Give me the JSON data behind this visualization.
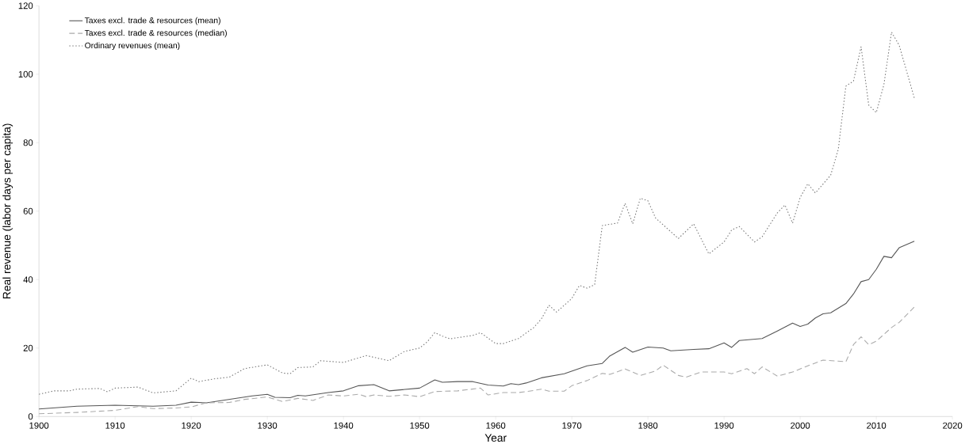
{
  "chart_data": {
    "type": "line",
    "xlabel": "Year",
    "ylabel": "Real revenue (labor days per capita)",
    "xlim": [
      1900,
      2020
    ],
    "xticks": [
      1900,
      1910,
      1920,
      1930,
      1940,
      1950,
      1960,
      1970,
      1980,
      1990,
      2000,
      2010,
      2020
    ],
    "ylim": [
      0,
      120
    ],
    "yticks": [
      0,
      20,
      40,
      60,
      80,
      100,
      120
    ],
    "grid": false,
    "legend": "top left",
    "marker": "none",
    "series": [
      {
        "name": "Taxes  excl. trade & resources (mean)",
        "color": "#555555",
        "line_style": "solid",
        "x": [
          1900,
          1905,
          1910,
          1915,
          1918,
          1920,
          1922,
          1925,
          1928,
          1930,
          1931,
          1933,
          1934,
          1935,
          1938,
          1940,
          1942,
          1944,
          1946,
          1950,
          1952,
          1953,
          1955,
          1957,
          1959,
          1961,
          1962,
          1963,
          1964,
          1966,
          1969,
          1972,
          1974,
          1975,
          1977,
          1978,
          1980,
          1982,
          1983,
          1986,
          1988,
          1990,
          1991,
          1992,
          1995,
          1997,
          1999,
          2000,
          2001,
          2002,
          2003,
          2004,
          2006,
          2007,
          2008,
          2009,
          2010,
          2011,
          2012,
          2013,
          2015
        ],
        "values": [
          2.2,
          3.0,
          3.3,
          3.0,
          3.3,
          4.2,
          4.0,
          5.0,
          6.0,
          6.5,
          5.6,
          5.5,
          6.2,
          6.0,
          7.0,
          7.5,
          9.0,
          9.3,
          7.5,
          8.3,
          10.7,
          10.0,
          10.2,
          10.2,
          9.2,
          8.9,
          9.6,
          9.3,
          9.8,
          11.3,
          12.5,
          14.8,
          15.5,
          17.7,
          20.2,
          18.8,
          20.3,
          20.0,
          19.2,
          19.6,
          19.8,
          21.5,
          20.2,
          22.2,
          22.8,
          25.0,
          27.3,
          26.3,
          27.0,
          28.8,
          30.0,
          30.3,
          33.0,
          35.8,
          39.4,
          40.0,
          43.0,
          46.8,
          46.4,
          49.3,
          51.2
        ]
      },
      {
        "name": "Taxes  excl. trade & resources (median)",
        "color": "#aaaaaa",
        "line_style": "dashed",
        "x": [
          1900,
          1905,
          1910,
          1913,
          1915,
          1918,
          1920,
          1922,
          1925,
          1927,
          1930,
          1932,
          1934,
          1936,
          1938,
          1940,
          1942,
          1943,
          1944,
          1946,
          1948,
          1950,
          1952,
          1955,
          1958,
          1959,
          1961,
          1963,
          1965,
          1966,
          1967,
          1969,
          1970,
          1972,
          1974,
          1975,
          1977,
          1979,
          1981,
          1982,
          1984,
          1985,
          1987,
          1990,
          1991,
          1993,
          1994,
          1995,
          1997,
          1999,
          2001,
          2003,
          2006,
          2007,
          2008,
          2009,
          2010,
          2012,
          2013,
          2015
        ],
        "values": [
          0.8,
          1.2,
          1.8,
          2.9,
          2.3,
          2.5,
          2.8,
          4.0,
          4.1,
          5.0,
          5.7,
          4.4,
          5.3,
          4.7,
          6.3,
          6.0,
          6.5,
          5.8,
          6.3,
          5.9,
          6.3,
          5.8,
          7.3,
          7.5,
          8.3,
          6.3,
          7.0,
          7.0,
          7.6,
          8.0,
          7.4,
          7.4,
          9.0,
          10.5,
          12.6,
          12.3,
          13.9,
          12.0,
          13.3,
          15.0,
          12.0,
          11.5,
          13.0,
          13.0,
          12.5,
          14.0,
          12.5,
          14.5,
          11.8,
          13.0,
          14.8,
          16.5,
          16.0,
          21.0,
          23.3,
          21.0,
          22.0,
          26.0,
          27.5,
          32.0
        ]
      },
      {
        "name": "Ordinary revenues (mean)",
        "color": "#777777",
        "line_style": "dotted",
        "x": [
          1900,
          1902,
          1904,
          1905,
          1908,
          1909,
          1910,
          1913,
          1915,
          1918,
          1920,
          1921,
          1923,
          1925,
          1927,
          1930,
          1932,
          1933,
          1934,
          1936,
          1937,
          1940,
          1943,
          1946,
          1948,
          1950,
          1951,
          1952,
          1953,
          1954,
          1957,
          1958,
          1960,
          1961,
          1963,
          1965,
          1966,
          1967,
          1968,
          1970,
          1971,
          1972,
          1973,
          1974,
          1976,
          1977,
          1978,
          1979,
          1980,
          1981,
          1984,
          1986,
          1988,
          1990,
          1991,
          1992,
          1994,
          1995,
          1997,
          1998,
          1999,
          2000,
          2001,
          2002,
          2004,
          2005,
          2006,
          2007,
          2008,
          2009,
          2010,
          2011,
          2012,
          2013,
          2015
        ],
        "values": [
          6.5,
          7.5,
          7.5,
          8.0,
          8.2,
          7.2,
          8.3,
          8.6,
          6.9,
          7.5,
          11.2,
          10.2,
          11.0,
          11.5,
          14.0,
          15.1,
          12.7,
          12.5,
          14.3,
          14.5,
          16.3,
          15.8,
          17.8,
          16.3,
          19.0,
          20.0,
          21.8,
          24.5,
          23.5,
          22.7,
          23.7,
          24.5,
          21.3,
          21.3,
          22.8,
          26.0,
          28.5,
          32.5,
          30.5,
          34.5,
          38.3,
          37.5,
          38.5,
          55.8,
          56.5,
          62.3,
          56.3,
          63.8,
          63.0,
          58.0,
          52.0,
          56.3,
          47.5,
          51.0,
          54.5,
          55.5,
          51.0,
          52.5,
          59.5,
          61.8,
          56.5,
          64.0,
          68.0,
          65.3,
          70.5,
          78.0,
          96.5,
          98.0,
          108.0,
          91.0,
          88.8,
          97.0,
          112.3,
          108.5,
          93.0
        ]
      }
    ]
  }
}
